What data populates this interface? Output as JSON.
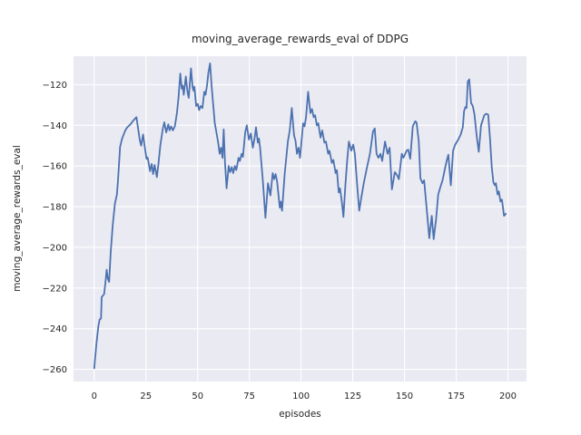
{
  "figure": {
    "title": "moving_average_rewards_eval of DDPG",
    "xlabel": "episodes",
    "ylabel": "moving_average_rewards_eval"
  },
  "chart_data": {
    "type": "line",
    "title": "moving_average_rewards_eval of DDPG",
    "xlabel": "episodes",
    "ylabel": "moving_average_rewards_eval",
    "x_ticks": [
      0,
      25,
      50,
      75,
      100,
      125,
      150,
      175,
      200
    ],
    "y_ticks": [
      -120,
      -140,
      -160,
      -180,
      -200,
      -220,
      -240,
      -260
    ],
    "xlim": [
      -10,
      209
    ],
    "ylim": [
      -266,
      -106
    ],
    "grid": true,
    "legend_position": "none",
    "colors": {
      "line": "#4c72b0",
      "axes_background": "#eaeaf2",
      "grid": "#ffffff",
      "figure_background": "#ffffff",
      "text": "#262626"
    },
    "series": [
      {
        "name": "moving_average_rewards_eval",
        "points": [
          [
            0,
            -259.5
          ],
          [
            1,
            -248
          ],
          [
            2,
            -239
          ],
          [
            2.6,
            -235.5
          ],
          [
            3.3,
            -235
          ],
          [
            3.6,
            -224.5
          ],
          [
            4.8,
            -223
          ],
          [
            5.4,
            -217.5
          ],
          [
            6,
            -211
          ],
          [
            6.6,
            -215.5
          ],
          [
            7.2,
            -217
          ],
          [
            8,
            -202
          ],
          [
            9,
            -188.5
          ],
          [
            10,
            -178.5
          ],
          [
            11,
            -174
          ],
          [
            11.5,
            -167
          ],
          [
            12.5,
            -150.5
          ],
          [
            13.5,
            -146.5
          ],
          [
            15,
            -142.5
          ],
          [
            16,
            -141
          ],
          [
            17.5,
            -139.5
          ],
          [
            19,
            -137.5
          ],
          [
            20.4,
            -136
          ],
          [
            21.2,
            -141.5
          ],
          [
            22,
            -147
          ],
          [
            22.7,
            -150
          ],
          [
            23.6,
            -144.5
          ],
          [
            24.4,
            -150.5
          ],
          [
            25.3,
            -156.5
          ],
          [
            25.8,
            -155.8
          ],
          [
            27,
            -162.5
          ],
          [
            27.8,
            -159
          ],
          [
            28.5,
            -164
          ],
          [
            29.2,
            -159.5
          ],
          [
            30.3,
            -165.5
          ],
          [
            31,
            -159.5
          ],
          [
            32,
            -149.5
          ],
          [
            33.2,
            -141.5
          ],
          [
            33.9,
            -138.5
          ],
          [
            34.8,
            -143.5
          ],
          [
            35.8,
            -139.5
          ],
          [
            36.4,
            -142.5
          ],
          [
            37.2,
            -140.5
          ],
          [
            38,
            -142.5
          ],
          [
            39,
            -140.5
          ],
          [
            40,
            -134
          ],
          [
            40.8,
            -126
          ],
          [
            41.6,
            -114.5
          ],
          [
            42.3,
            -122
          ],
          [
            42.8,
            -120.5
          ],
          [
            43.3,
            -125
          ],
          [
            44.3,
            -116
          ],
          [
            45.1,
            -123.5
          ],
          [
            45.7,
            -126.5
          ],
          [
            46.8,
            -112
          ],
          [
            47.6,
            -121.5
          ],
          [
            48,
            -123
          ],
          [
            48.4,
            -121
          ],
          [
            49.3,
            -130.5
          ],
          [
            50.1,
            -129.5
          ],
          [
            50.7,
            -132.5
          ],
          [
            51.5,
            -130.5
          ],
          [
            52.3,
            -131.5
          ],
          [
            53.2,
            -123.5
          ],
          [
            53.8,
            -125
          ],
          [
            54.5,
            -120.5
          ],
          [
            55.2,
            -114
          ],
          [
            56,
            -109.5
          ],
          [
            56.7,
            -120
          ],
          [
            57.3,
            -127
          ],
          [
            58.3,
            -139
          ],
          [
            59.1,
            -143.5
          ],
          [
            60,
            -149
          ],
          [
            60.6,
            -154
          ],
          [
            61.3,
            -151
          ],
          [
            62,
            -156
          ],
          [
            62.6,
            -142
          ],
          [
            63.2,
            -158
          ],
          [
            64,
            -171
          ],
          [
            65,
            -160
          ],
          [
            65.7,
            -163
          ],
          [
            66.5,
            -160.5
          ],
          [
            67.2,
            -163.5
          ],
          [
            68,
            -160
          ],
          [
            68.7,
            -162
          ],
          [
            69.8,
            -156
          ],
          [
            70.4,
            -157.5
          ],
          [
            71.3,
            -154
          ],
          [
            71.9,
            -155.5
          ],
          [
            73,
            -143.5
          ],
          [
            73.8,
            -140
          ],
          [
            74.8,
            -147
          ],
          [
            75.7,
            -144
          ],
          [
            76.7,
            -151
          ],
          [
            77.5,
            -146.5
          ],
          [
            78.2,
            -141
          ],
          [
            79.1,
            -148.5
          ],
          [
            79.6,
            -146.5
          ],
          [
            80.2,
            -151
          ],
          [
            81.5,
            -167
          ],
          [
            82.8,
            -185.5
          ],
          [
            84,
            -168.5
          ],
          [
            85.2,
            -174.5
          ],
          [
            86.3,
            -163.5
          ],
          [
            87,
            -166.5
          ],
          [
            87.7,
            -164
          ],
          [
            88.4,
            -167.5
          ],
          [
            89.7,
            -180.5
          ],
          [
            90.2,
            -177.5
          ],
          [
            90.8,
            -182
          ],
          [
            92.1,
            -164
          ],
          [
            93.6,
            -148
          ],
          [
            94.6,
            -142
          ],
          [
            95.5,
            -131.5
          ],
          [
            96.6,
            -145
          ],
          [
            97.3,
            -147.5
          ],
          [
            98,
            -154
          ],
          [
            98.8,
            -151
          ],
          [
            99.5,
            -156
          ],
          [
            101,
            -139
          ],
          [
            101.7,
            -140.5
          ],
          [
            102.4,
            -136
          ],
          [
            103.4,
            -123.5
          ],
          [
            104.5,
            -134
          ],
          [
            105.3,
            -132
          ],
          [
            106.1,
            -136
          ],
          [
            106.8,
            -135
          ],
          [
            107.6,
            -140
          ],
          [
            108.3,
            -139
          ],
          [
            109.4,
            -146
          ],
          [
            110.2,
            -142.5
          ],
          [
            111.3,
            -148.5
          ],
          [
            112,
            -148
          ],
          [
            113.1,
            -154
          ],
          [
            113.7,
            -152.5
          ],
          [
            114.9,
            -158.5
          ],
          [
            115.6,
            -157
          ],
          [
            116.7,
            -163.5
          ],
          [
            117.3,
            -162
          ],
          [
            118.2,
            -173
          ],
          [
            118.8,
            -171
          ],
          [
            119.7,
            -177.5
          ],
          [
            120.5,
            -185
          ],
          [
            121.5,
            -168.5
          ],
          [
            122.3,
            -157
          ],
          [
            123.1,
            -148
          ],
          [
            124.3,
            -152.5
          ],
          [
            125.2,
            -149.5
          ],
          [
            126,
            -154
          ],
          [
            127,
            -168
          ],
          [
            128.1,
            -182
          ],
          [
            129.2,
            -175
          ],
          [
            130.3,
            -168.5
          ],
          [
            131.8,
            -161
          ],
          [
            133.3,
            -154
          ],
          [
            134.8,
            -143
          ],
          [
            135.6,
            -141.5
          ],
          [
            136.5,
            -154
          ],
          [
            137.4,
            -156
          ],
          [
            138.4,
            -154
          ],
          [
            139.2,
            -157.5
          ],
          [
            140.6,
            -148
          ],
          [
            141.8,
            -154
          ],
          [
            142.8,
            -151
          ],
          [
            143.9,
            -171.5
          ],
          [
            145.3,
            -163
          ],
          [
            146.4,
            -164.5
          ],
          [
            147.3,
            -166.5
          ],
          [
            148.7,
            -154
          ],
          [
            149.5,
            -156
          ],
          [
            151,
            -152.5
          ],
          [
            151.8,
            -152
          ],
          [
            152.8,
            -156.5
          ],
          [
            154,
            -140.5
          ],
          [
            155.2,
            -138
          ],
          [
            155.8,
            -138.5
          ],
          [
            156.9,
            -148
          ],
          [
            157.7,
            -166
          ],
          [
            158.7,
            -168.5
          ],
          [
            159.5,
            -167
          ],
          [
            161,
            -184
          ],
          [
            162,
            -195.5
          ],
          [
            163.2,
            -184.5
          ],
          [
            164.1,
            -196
          ],
          [
            165.3,
            -186
          ],
          [
            166.3,
            -174
          ],
          [
            167.3,
            -170.5
          ],
          [
            168.4,
            -167
          ],
          [
            169.4,
            -162
          ],
          [
            170.4,
            -157.5
          ],
          [
            171.2,
            -154.5
          ],
          [
            172.4,
            -169.5
          ],
          [
            173.5,
            -152.5
          ],
          [
            174.5,
            -149.5
          ],
          [
            176,
            -147
          ],
          [
            177.2,
            -144.5
          ],
          [
            178.2,
            -141
          ],
          [
            178.8,
            -133
          ],
          [
            179.4,
            -131
          ],
          [
            180,
            -131.5
          ],
          [
            180.6,
            -118.5
          ],
          [
            181.3,
            -117.4
          ],
          [
            182.2,
            -129
          ],
          [
            183,
            -130.5
          ],
          [
            183.8,
            -134.5
          ],
          [
            185,
            -146
          ],
          [
            185.9,
            -153
          ],
          [
            187,
            -140
          ],
          [
            187.8,
            -137.5
          ],
          [
            188.6,
            -135
          ],
          [
            189.5,
            -134.3
          ],
          [
            190.5,
            -134.8
          ],
          [
            191.3,
            -146
          ],
          [
            192.2,
            -160.5
          ],
          [
            193,
            -168
          ],
          [
            193.7,
            -169.5
          ],
          [
            194.2,
            -168.5
          ],
          [
            195,
            -174
          ],
          [
            195.6,
            -172.5
          ],
          [
            196.4,
            -177.5
          ],
          [
            197.1,
            -176.5
          ],
          [
            198.1,
            -184.5
          ],
          [
            199,
            -183.5
          ]
        ]
      }
    ]
  }
}
